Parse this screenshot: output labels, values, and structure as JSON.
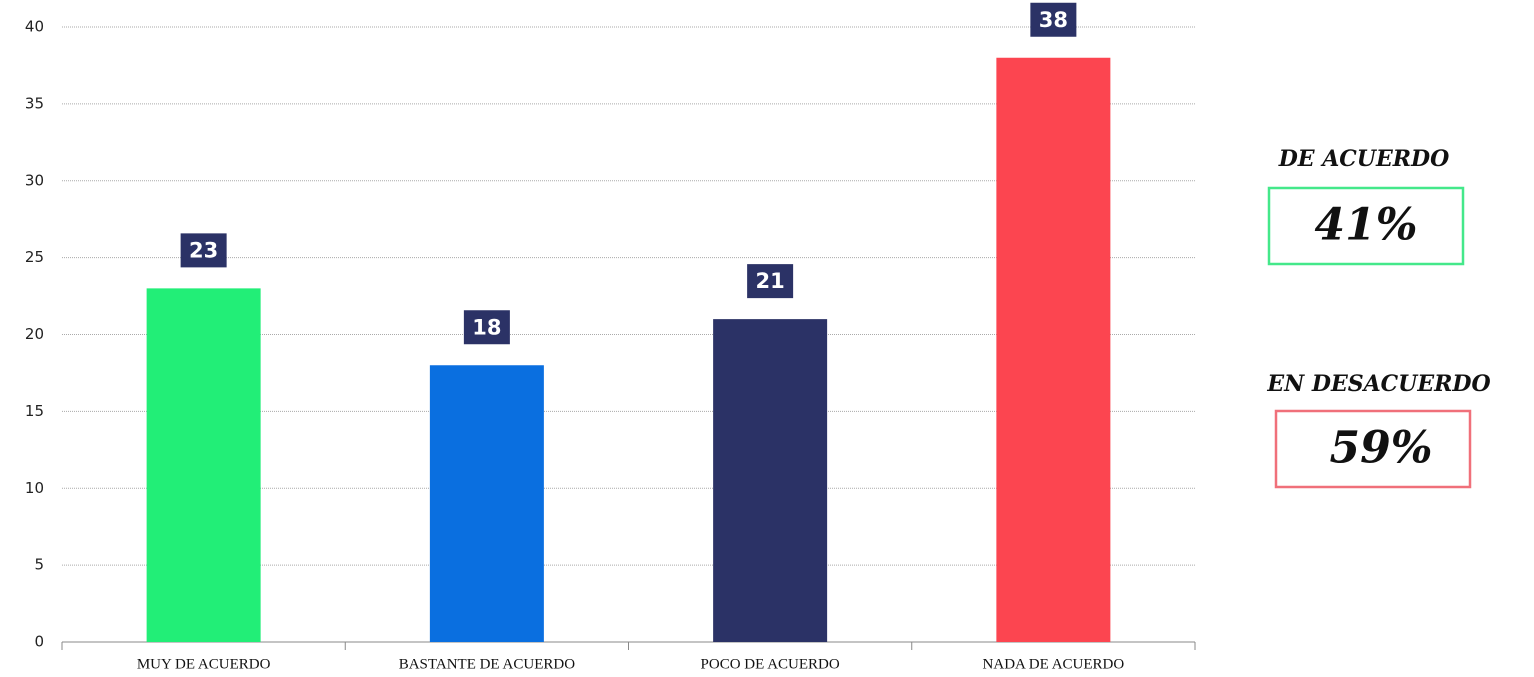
{
  "chart_data": {
    "type": "bar",
    "categories": [
      "MUY DE ACUERDO",
      "BASTANTE DE ACUERDO",
      "POCO DE ACUERDO",
      "NADA DE ACUERDO"
    ],
    "values": [
      23,
      18,
      21,
      38
    ],
    "colors": [
      "#22ee77",
      "#0a6fe0",
      "#2b3266",
      "#fc4550"
    ],
    "label_color": "#2b3266",
    "ylim": [
      0,
      40
    ],
    "yticks": [
      0,
      5,
      10,
      15,
      20,
      25,
      30,
      35,
      40
    ],
    "grid": true,
    "annotations": [
      {
        "label": "DE ACUERDO",
        "value": 41,
        "value_label": "41%",
        "color": "#44e88a"
      },
      {
        "label": "EN DESACUERDO",
        "value": 59,
        "value_label": "59%",
        "color": "#f0707a"
      }
    ]
  }
}
